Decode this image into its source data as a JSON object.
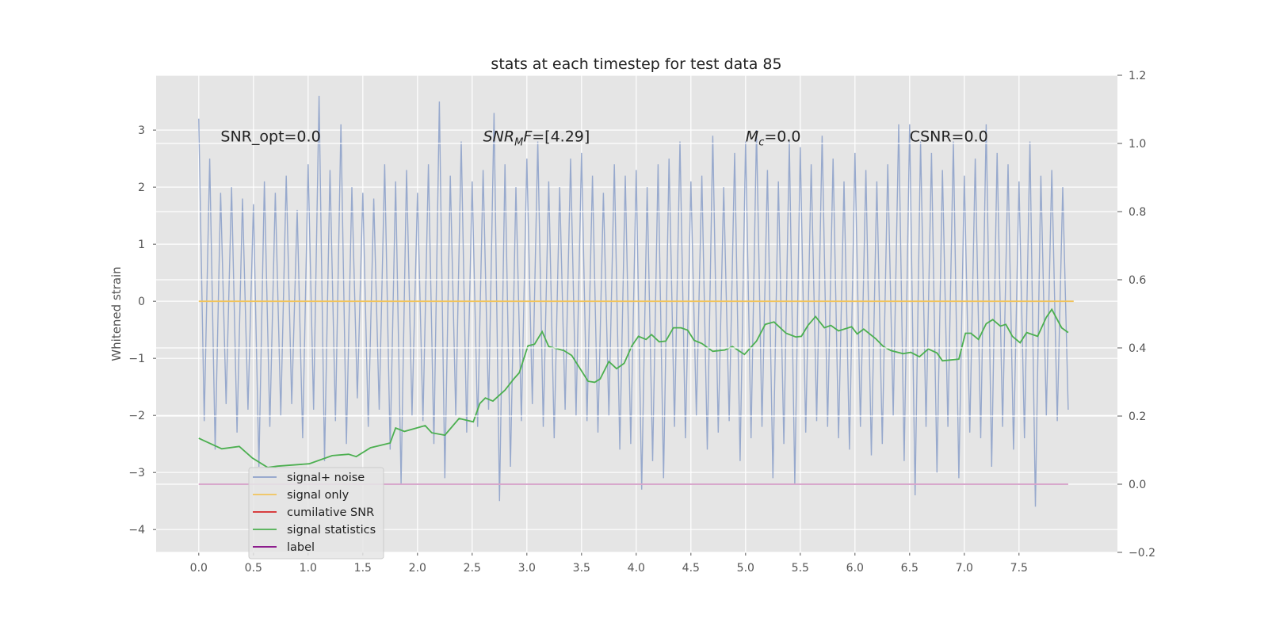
{
  "chart_data": {
    "type": "line",
    "title": "stats at each timestep for test data 85",
    "ylabel": "Whitened strain",
    "xlim": [
      -0.39,
      8.4
    ],
    "ylim": [
      -4.4,
      3.96
    ],
    "y2lim": [
      -0.2,
      1.2
    ],
    "xticks": [
      {
        "value": 0,
        "label": "0.0"
      },
      0.5,
      {
        "value": 1,
        "label": "1.0"
      },
      1.5,
      {
        "value": 2,
        "label": "2.0"
      },
      2.5,
      {
        "value": 3,
        "label": "3.0"
      },
      3.5,
      {
        "value": 4,
        "label": "4.0"
      },
      4.5,
      {
        "value": 5,
        "label": "5.0"
      },
      5.5,
      {
        "value": 6,
        "label": "6.0"
      },
      6.5,
      {
        "value": 7,
        "label": "7.0"
      },
      7.5
    ],
    "yticks": [
      {
        "value": -4,
        "label": "−4"
      },
      {
        "value": -3,
        "label": "−3"
      },
      {
        "value": -2,
        "label": "−2"
      },
      {
        "value": -1,
        "label": "−1"
      },
      0,
      1,
      2,
      3
    ],
    "y2ticks": [
      {
        "value": -0.2,
        "label": "−0.2"
      },
      {
        "value": 0,
        "label": "0.0"
      },
      0.2,
      0.4,
      0.6,
      0.8,
      {
        "value": 1,
        "label": "1.0"
      },
      1.2
    ],
    "grid": true,
    "legend": "lower left",
    "annotations": [
      {
        "x": 0.2,
        "y": 2.8,
        "parts": [
          {
            "text": "SNR_opt=0.0"
          }
        ]
      },
      {
        "x": 2.6,
        "y": 2.8,
        "parts": [
          {
            "text": "SNR",
            "style": "italic"
          },
          {
            "text": "M",
            "style": "sub"
          },
          {
            "text": "F",
            "style": "italic"
          },
          {
            "text": "=[4.29]"
          }
        ]
      },
      {
        "x": 5.0,
        "y": 2.8,
        "parts": [
          {
            "text": "M",
            "style": "italic"
          },
          {
            "text": "c",
            "style": "sub"
          },
          {
            "text": "=0.0"
          }
        ]
      },
      {
        "x": 6.5,
        "y": 2.8,
        "parts": [
          {
            "text": "CSNR=0.0"
          }
        ]
      }
    ],
    "series": [
      {
        "name": "signal+ noise",
        "color": "#8ea2ca",
        "axis": "y",
        "x": [
          0,
          0.05,
          0.1,
          0.15,
          0.2,
          0.25,
          0.3,
          0.35,
          0.4,
          0.45,
          0.5,
          0.55,
          0.6,
          0.65,
          0.7,
          0.75,
          0.8,
          0.85,
          0.9,
          0.95,
          1,
          1.05,
          1.1,
          1.15,
          1.2,
          1.25,
          1.3,
          1.35,
          1.4,
          1.45,
          1.5,
          1.55,
          1.6,
          1.65,
          1.7,
          1.75,
          1.8,
          1.85,
          1.9,
          1.95,
          2,
          2.05,
          2.1,
          2.15,
          2.2,
          2.25,
          2.3,
          2.35,
          2.4,
          2.45,
          2.5,
          2.55,
          2.6,
          2.65,
          2.7,
          2.75,
          2.8,
          2.85,
          2.9,
          2.95,
          3,
          3.05,
          3.1,
          3.15,
          3.2,
          3.25,
          3.3,
          3.35,
          3.4,
          3.45,
          3.5,
          3.55,
          3.6,
          3.65,
          3.7,
          3.75,
          3.8,
          3.85,
          3.9,
          3.95,
          4,
          4.05,
          4.1,
          4.15,
          4.2,
          4.25,
          4.3,
          4.35,
          4.4,
          4.45,
          4.5,
          4.55,
          4.6,
          4.65,
          4.7,
          4.75,
          4.8,
          4.85,
          4.9,
          4.95,
          5,
          5.05,
          5.1,
          5.15,
          5.2,
          5.25,
          5.3,
          5.35,
          5.4,
          5.45,
          5.5,
          5.55,
          5.6,
          5.65,
          5.7,
          5.75,
          5.8,
          5.85,
          5.9,
          5.95,
          6,
          6.05,
          6.1,
          6.15,
          6.2,
          6.25,
          6.3,
          6.35,
          6.4,
          6.45,
          6.5,
          6.55,
          6.6,
          6.65,
          6.7,
          6.75,
          6.8,
          6.85,
          6.9,
          6.95,
          7,
          7.05,
          7.1,
          7.15,
          7.2,
          7.25,
          7.3,
          7.35,
          7.4,
          7.45,
          7.5,
          7.55,
          7.6,
          7.65,
          7.7,
          7.75,
          7.8,
          7.85,
          7.9,
          7.95
        ],
        "values": [
          3.2,
          -2.1,
          2.5,
          -2.6,
          1.9,
          -1.8,
          2.0,
          -2.3,
          1.8,
          -1.9,
          1.7,
          -2.9,
          2.1,
          -2.2,
          1.9,
          -2.0,
          2.2,
          -1.8,
          1.6,
          -2.4,
          2.4,
          -1.9,
          3.6,
          -2.8,
          2.3,
          -2.1,
          3.1,
          -2.5,
          2.0,
          -1.7,
          1.9,
          -2.2,
          1.8,
          -1.9,
          2.4,
          -2.6,
          2.1,
          -3.2,
          2.3,
          -2.0,
          1.9,
          -2.1,
          2.4,
          -2.5,
          3.5,
          -3.1,
          2.2,
          -2.0,
          2.8,
          -2.3,
          2.1,
          -2.2,
          2.3,
          -1.9,
          3.3,
          -3.5,
          2.4,
          -2.9,
          2.0,
          -2.1,
          2.5,
          -1.8,
          2.8,
          -2.2,
          2.1,
          -2.4,
          2.0,
          -1.9,
          2.5,
          -2.0,
          2.6,
          -2.1,
          2.2,
          -2.3,
          1.9,
          -2.0,
          2.4,
          -2.6,
          2.2,
          -2.5,
          2.3,
          -3.3,
          2.0,
          -2.8,
          2.4,
          -3.1,
          2.5,
          -2.2,
          2.8,
          -2.4,
          2.1,
          -2.0,
          2.2,
          -2.6,
          2.9,
          -2.3,
          2.0,
          -2.1,
          2.6,
          -2.8,
          2.8,
          -2.4,
          3.0,
          -2.2,
          2.3,
          -3.1,
          2.1,
          -2.5,
          2.8,
          -3.2,
          2.7,
          -2.3,
          2.4,
          -2.1,
          2.9,
          -2.2,
          2.5,
          -2.4,
          2.1,
          -2.6,
          2.6,
          -2.2,
          2.3,
          -2.7,
          2.1,
          -2.5,
          2.4,
          -2.0,
          3.1,
          -2.8,
          3.1,
          -3.4,
          2.8,
          -2.2,
          2.6,
          -3.0,
          2.3,
          -2.2,
          2.8,
          -3.1,
          2.2,
          -2.3,
          2.5,
          -2.4,
          3.1,
          -2.9,
          2.6,
          -2.2,
          2.4,
          -2.6,
          2.1,
          -2.4,
          2.8,
          -3.6,
          2.2,
          -2.0,
          2.3,
          -2.1,
          2.0,
          -1.9
        ]
      },
      {
        "name": "signal only",
        "color": "#f2c45a",
        "axis": "y",
        "x": [
          0,
          8.0
        ],
        "values": [
          0,
          0
        ]
      },
      {
        "name": "cumilative SNR",
        "color": "#d62728",
        "axis": "y2",
        "x": [
          0,
          7.95
        ],
        "values": [
          0,
          0
        ]
      },
      {
        "name": "signal statistics",
        "color": "#4caf50",
        "axis": "y2",
        "x": [
          0,
          0.21,
          0.37,
          0.49,
          0.63,
          0.72,
          1.01,
          1.22,
          1.37,
          1.44,
          1.57,
          1.75,
          1.8,
          1.88,
          2.07,
          2.13,
          2.25,
          2.38,
          2.51,
          2.57,
          2.62,
          2.69,
          2.8,
          2.88,
          2.93,
          3.01,
          3.07,
          3.14,
          3.2,
          3.34,
          3.41,
          3.56,
          3.62,
          3.67,
          3.75,
          3.82,
          3.89,
          3.96,
          4.02,
          4.09,
          4.14,
          4.21,
          4.27,
          4.34,
          4.41,
          4.47,
          4.53,
          4.6,
          4.7,
          4.81,
          4.88,
          4.99,
          5.1,
          5.18,
          5.26,
          5.37,
          5.46,
          5.51,
          5.57,
          5.64,
          5.72,
          5.78,
          5.85,
          5.97,
          6.02,
          6.08,
          6.19,
          6.26,
          6.33,
          6.44,
          6.51,
          6.59,
          6.67,
          6.75,
          6.8,
          6.95,
          7.01,
          7.06,
          7.13,
          7.2,
          7.26,
          7.33,
          7.38,
          7.44,
          7.51,
          7.57,
          7.67,
          7.75,
          7.8,
          7.89,
          7.95
        ],
        "values": [
          0.135,
          0.104,
          0.111,
          0.077,
          0.049,
          0.053,
          0.06,
          0.084,
          0.088,
          0.081,
          0.107,
          0.121,
          0.165,
          0.155,
          0.172,
          0.151,
          0.144,
          0.193,
          0.183,
          0.237,
          0.253,
          0.244,
          0.276,
          0.309,
          0.327,
          0.406,
          0.411,
          0.448,
          0.404,
          0.392,
          0.378,
          0.302,
          0.299,
          0.309,
          0.36,
          0.339,
          0.355,
          0.406,
          0.434,
          0.425,
          0.439,
          0.418,
          0.42,
          0.459,
          0.459,
          0.452,
          0.422,
          0.413,
          0.39,
          0.394,
          0.404,
          0.381,
          0.42,
          0.469,
          0.476,
          0.443,
          0.432,
          0.434,
          0.466,
          0.492,
          0.459,
          0.466,
          0.45,
          0.462,
          0.441,
          0.455,
          0.427,
          0.404,
          0.392,
          0.383,
          0.387,
          0.374,
          0.397,
          0.385,
          0.362,
          0.367,
          0.443,
          0.443,
          0.425,
          0.471,
          0.483,
          0.464,
          0.469,
          0.434,
          0.415,
          0.445,
          0.434,
          0.49,
          0.513,
          0.459,
          0.445
        ]
      },
      {
        "name": "label",
        "color": "#800080",
        "axis": "y2",
        "x": [
          0,
          7.95
        ],
        "values": [
          0,
          0
        ]
      }
    ]
  }
}
